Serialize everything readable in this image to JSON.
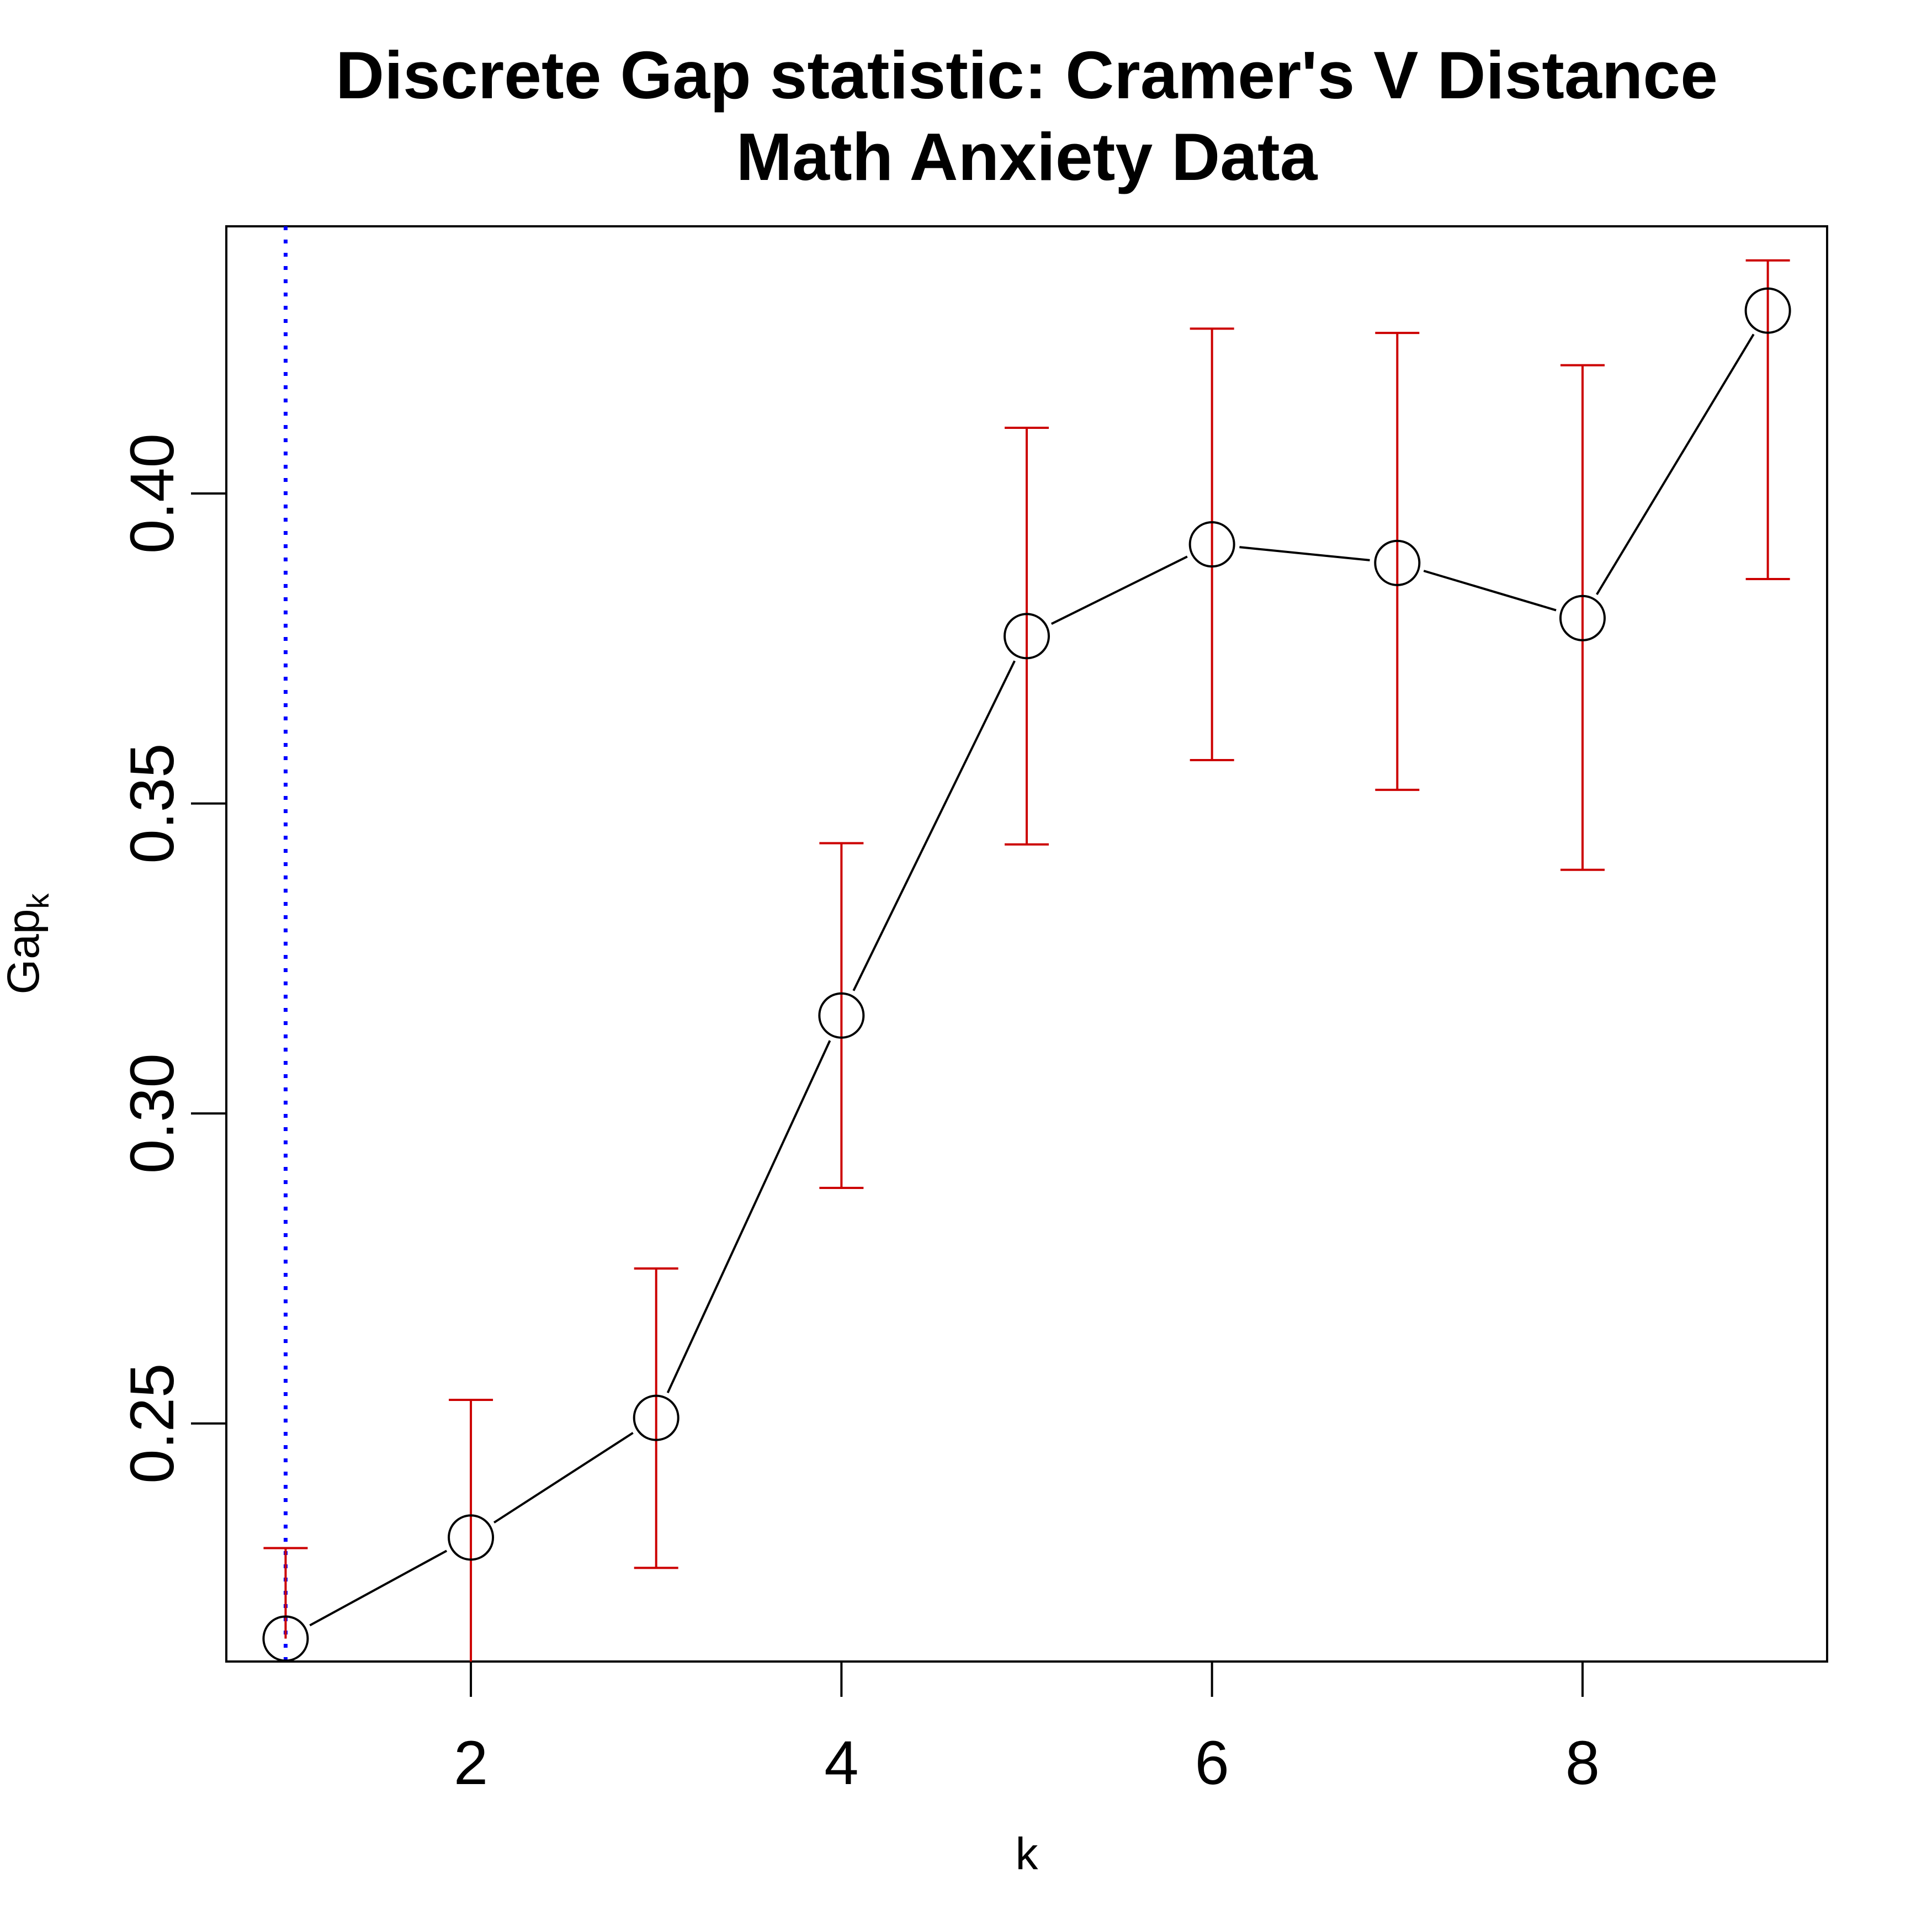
{
  "chart_data": {
    "type": "line",
    "title": "Discrete Gap statistic: Cramer's V Distance",
    "subtitle": "Math Anxiety Data",
    "xlabel": "k",
    "ylabel_main": "Gap",
    "ylabel_sub": "k",
    "x": [
      1,
      2,
      3,
      4,
      5,
      6,
      7,
      8,
      9
    ],
    "y": [
      0.2153,
      0.2316,
      0.2509,
      0.3158,
      0.377,
      0.3918,
      0.3888,
      0.3799,
      0.4295
    ],
    "error_lower": [
      0.2153,
      0.209,
      0.2267,
      0.288,
      0.3434,
      0.357,
      0.3522,
      0.3393,
      0.3862
    ],
    "error_upper": [
      0.2299,
      0.2538,
      0.275,
      0.3436,
      0.4106,
      0.4266,
      0.4259,
      0.4207,
      0.4376
    ],
    "xlim": [
      0.68,
      9.32
    ],
    "ylim": [
      0.2116,
      0.4431
    ],
    "x_ticks": [
      2,
      4,
      6,
      8
    ],
    "y_ticks": [
      0.25,
      0.3,
      0.35,
      0.4
    ],
    "x_tick_labels": [
      "2",
      "4",
      "6",
      "8"
    ],
    "y_tick_labels": [
      "0.25",
      "0.30",
      "0.35",
      "0.40"
    ],
    "vline_x": 1,
    "colors": {
      "line": "#000000",
      "error_bars": "#cc0000",
      "vline": "#0000ff",
      "frame": "#000000"
    },
    "grid": false
  }
}
